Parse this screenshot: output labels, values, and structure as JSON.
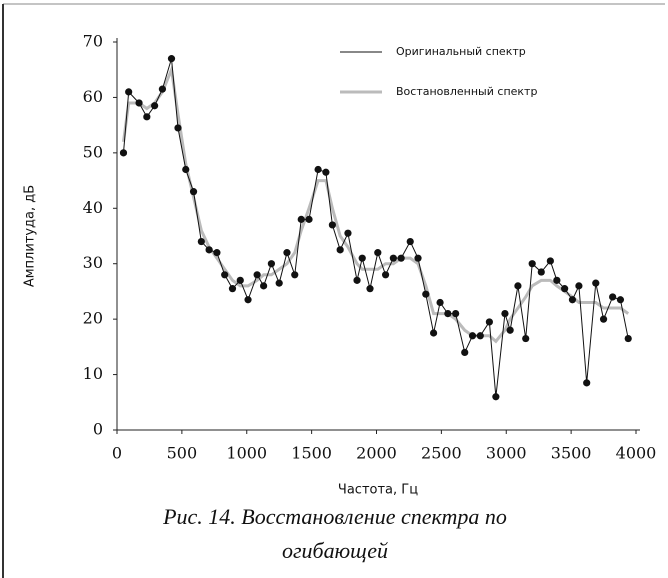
{
  "chart_data": {
    "type": "line",
    "x": [
      50,
      90,
      170,
      230,
      290,
      350,
      420,
      470,
      530,
      590,
      650,
      710,
      770,
      830,
      890,
      950,
      1010,
      1080,
      1130,
      1190,
      1250,
      1310,
      1370,
      1420,
      1480,
      1550,
      1610,
      1660,
      1720,
      1780,
      1850,
      1890,
      1950,
      2010,
      2070,
      2130,
      2190,
      2260,
      2320,
      2380,
      2440,
      2490,
      2550,
      2610,
      2680,
      2740,
      2800,
      2870,
      2920,
      2990,
      3030,
      3090,
      3150,
      3200,
      3270,
      3340,
      3390,
      3450,
      3510,
      3560,
      3620,
      3690,
      3750,
      3820,
      3880,
      3940
    ],
    "series": [
      {
        "name": "Оригинальный спектр",
        "color": "#111111",
        "values": [
          50,
          61,
          59,
          56.5,
          58.5,
          61.5,
          67,
          54.5,
          47,
          43,
          34,
          32.5,
          32,
          28,
          25.5,
          27,
          23.5,
          28,
          26,
          30,
          26.5,
          32,
          28,
          38,
          38,
          47,
          46.5,
          37,
          32.5,
          35.5,
          27,
          31,
          25.5,
          32,
          28,
          31,
          31,
          34,
          31,
          24.5,
          17.5,
          23,
          21,
          21,
          14,
          17,
          17,
          19.5,
          6,
          21,
          18,
          26,
          16.5,
          30,
          28.5,
          30.5,
          27,
          25.5,
          23.5,
          26,
          8.5,
          26.5,
          20,
          24,
          23.5,
          16.5
        ]
      },
      {
        "name": "Востановленный спектр",
        "color": "#bbbbbb",
        "values": [
          52,
          59,
          59,
          58,
          59,
          61,
          65,
          57,
          48,
          42,
          36,
          33,
          31,
          29,
          27,
          26,
          26,
          27,
          28,
          28,
          29,
          30,
          32,
          36,
          40,
          45,
          45,
          40,
          35,
          33,
          30,
          29,
          29,
          29,
          30,
          30,
          31,
          31,
          30,
          26,
          21,
          21,
          21,
          20,
          18,
          17,
          17,
          17,
          16,
          18,
          20,
          22,
          24,
          26,
          27,
          27,
          26,
          25,
          24,
          23,
          23,
          23,
          22,
          22,
          22,
          21
        ]
      }
    ],
    "xlabel": "Частота, Гц",
    "ylabel": "Амплитуда, дБ",
    "xlim": [
      0,
      4000
    ],
    "ylim": [
      0,
      70
    ],
    "xticks": [
      0,
      500,
      1000,
      1500,
      2000,
      2500,
      3000,
      3500,
      4000
    ],
    "yticks": [
      0,
      10,
      20,
      30,
      40,
      50,
      60,
      70
    ],
    "legend": "upper right",
    "caption": "Рис. 14. Восстановление спектра по огибающей"
  }
}
